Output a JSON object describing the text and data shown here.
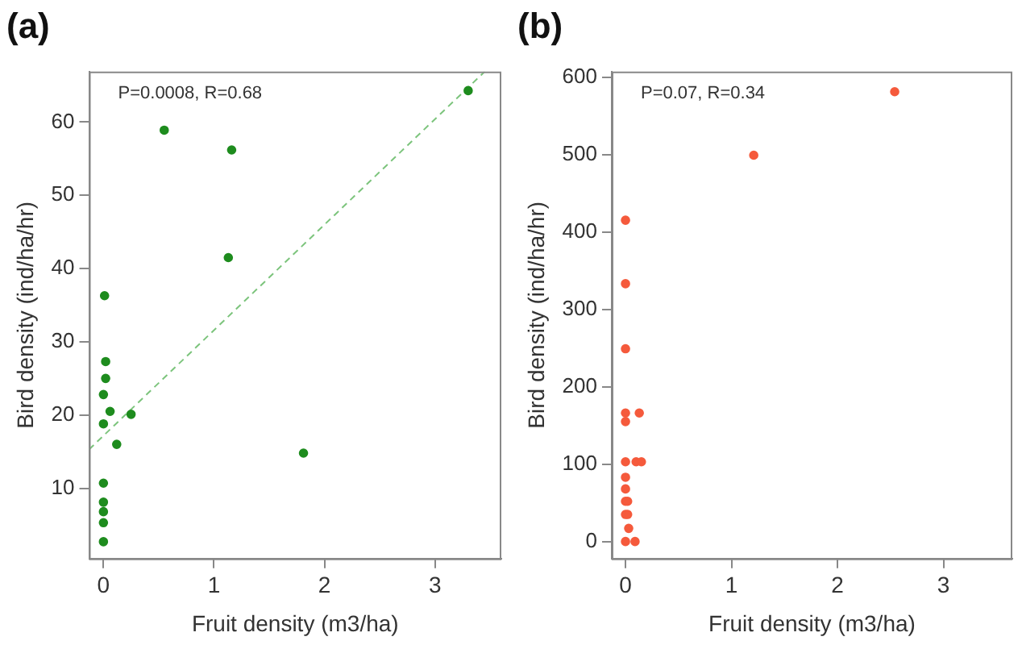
{
  "chart_data": [
    {
      "type": "scatter",
      "title": "(a)",
      "xlabel": "Fruit density (m3/ha)",
      "ylabel": "Bird density (ind/ha/hr)",
      "annotations": [
        "P=0.0008, R=0.68"
      ],
      "xlim": [
        -0.13,
        3.6
      ],
      "ylim": [
        0.4,
        66.9
      ],
      "xticks": [
        0,
        1,
        2,
        3
      ],
      "yticks": [
        10,
        20,
        30,
        40,
        50,
        60
      ],
      "grid": false,
      "legend": false,
      "marker": "circle",
      "series": [
        {
          "color": "#1e8c1e",
          "x": [
            0,
            0,
            0,
            0,
            0,
            0,
            0,
            0.02,
            0.02,
            0.01,
            0.06,
            0.12,
            0.25,
            0.55,
            1.13,
            1.16,
            1.81,
            3.3
          ],
          "values": [
            2.7,
            5.3,
            6.8,
            8.1,
            10.7,
            18.8,
            22.8,
            25,
            27.3,
            36.3,
            20.5,
            16,
            20.1,
            58.9,
            41.5,
            56.2,
            14.8,
            64.3
          ]
        },
        {
          "type": "line",
          "color": "#7cc47c",
          "line_style": "dashed",
          "marker": "none",
          "x": [
            -0.13,
            3.45
          ],
          "values": [
            15.3,
            66.9
          ]
        }
      ]
    },
    {
      "type": "scatter",
      "title": "(b)",
      "xlabel": "Fruit density (m3/ha)",
      "ylabel": "Bird density (ind/ha/hr)",
      "annotations": [
        "P=0.07, R=0.34"
      ],
      "xlim": [
        -0.13,
        3.65
      ],
      "ylim": [
        -22,
        607
      ],
      "xticks": [
        0,
        1,
        2,
        3
      ],
      "yticks": [
        0,
        100,
        200,
        300,
        400,
        500,
        600
      ],
      "grid": false,
      "legend": false,
      "marker": "circle",
      "series": [
        {
          "color": "#f55a3c",
          "x": [
            0,
            0.09,
            0.03,
            0,
            0.02,
            0,
            0.02,
            0,
            0,
            0,
            0.1,
            0.15,
            0,
            0,
            0.13,
            0,
            0,
            0,
            1.21,
            2.54
          ],
          "values": [
            0,
            0,
            17,
            35,
            35,
            52,
            52,
            68,
            83,
            103,
            103,
            103,
            155,
            166,
            166,
            249,
            333,
            415,
            499,
            581
          ]
        }
      ]
    }
  ]
}
